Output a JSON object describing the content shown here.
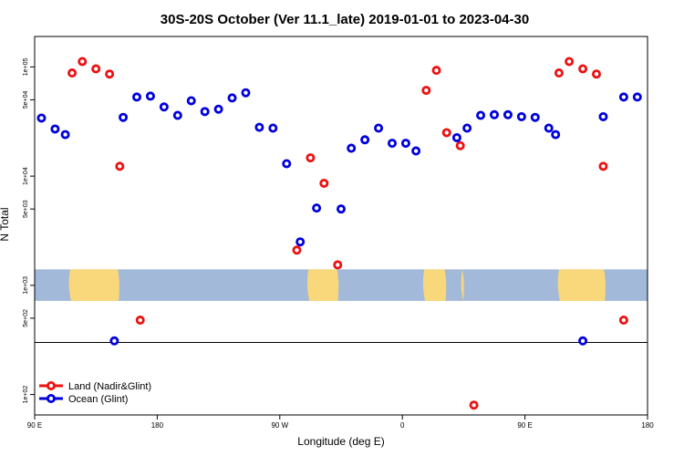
{
  "chart_data": {
    "type": "scatter",
    "title": "30S-20S October (Ver 11.1_late)   2019-01-01 to 2023-04-30",
    "xlabel": "Longitude (deg E)",
    "ylabel": "N Total",
    "y_scale": "log",
    "ylim": [
      65,
      190000
    ],
    "xlim": [
      90,
      540
    ],
    "x_ticks": [
      {
        "value": 90,
        "label": "90 E"
      },
      {
        "value": 180,
        "label": "180"
      },
      {
        "value": 270,
        "label": "90 W"
      },
      {
        "value": 360,
        "label": "0"
      },
      {
        "value": 450,
        "label": "90 E"
      },
      {
        "value": 540,
        "label": "180"
      }
    ],
    "y_ticks": [
      {
        "value": 100,
        "label": "1e+02"
      },
      {
        "value": 500,
        "label": "5e+02"
      },
      {
        "value": 1000,
        "label": "1e+03"
      },
      {
        "value": 5000,
        "label": "5e+03"
      },
      {
        "value": 10000,
        "label": "1e+04"
      },
      {
        "value": 50000,
        "label": "5e+04"
      },
      {
        "value": 100000,
        "label": "1e+05"
      }
    ],
    "reference_line": 300,
    "map_band": {
      "ymin": 720,
      "ymax": 1400,
      "ocean_color": "#a3b9d9",
      "land_color": "#f8d87a"
    },
    "legend": {
      "position": "bottom-left"
    },
    "series": [
      {
        "name": "Land (Nadir&Glint)",
        "color": "#ee1111",
        "points": [
          [
            117.5,
            88000
          ],
          [
            125,
            112000
          ],
          [
            135,
            96000
          ],
          [
            145,
            86000
          ],
          [
            152.5,
            12300
          ],
          [
            167.5,
            480
          ],
          [
            292.5,
            14700
          ],
          [
            302.5,
            8600
          ],
          [
            282.5,
            2100
          ],
          [
            312.5,
            1540
          ],
          [
            377.5,
            61000
          ],
          [
            385,
            93000
          ],
          [
            392.5,
            25000
          ],
          [
            402.5,
            19000
          ],
          [
            412.5,
            80
          ],
          [
            475,
            88000
          ],
          [
            482.5,
            112000
          ],
          [
            492.5,
            96000
          ],
          [
            502.5,
            86000
          ],
          [
            507.5,
            12300
          ],
          [
            522.5,
            480
          ]
        ]
      },
      {
        "name": "Ocean (Glint)",
        "color": "#0000dd",
        "points": [
          [
            95,
            34000
          ],
          [
            105,
            27000
          ],
          [
            112.5,
            24000
          ],
          [
            148.5,
            310
          ],
          [
            155,
            34500
          ],
          [
            165,
            53000
          ],
          [
            175,
            54000
          ],
          [
            185,
            43000
          ],
          [
            195,
            36000
          ],
          [
            205,
            49000
          ],
          [
            215,
            39000
          ],
          [
            225,
            41000
          ],
          [
            235,
            52000
          ],
          [
            245,
            58000
          ],
          [
            255,
            28000
          ],
          [
            265,
            27500
          ],
          [
            275,
            13000
          ],
          [
            285,
            2500
          ],
          [
            297,
            5100
          ],
          [
            315,
            5000
          ],
          [
            322.5,
            18000
          ],
          [
            332.5,
            21500
          ],
          [
            342.5,
            27500
          ],
          [
            352.5,
            20000
          ],
          [
            362.5,
            20000
          ],
          [
            370,
            17000
          ],
          [
            400,
            22500
          ],
          [
            407.5,
            27500
          ],
          [
            417.5,
            36000
          ],
          [
            427.5,
            36500
          ],
          [
            437.5,
            36500
          ],
          [
            447.5,
            35000
          ],
          [
            457.5,
            34500
          ],
          [
            467.5,
            27500
          ],
          [
            472.5,
            24000
          ],
          [
            492.5,
            310
          ],
          [
            507.5,
            35000
          ],
          [
            522.5,
            53000
          ],
          [
            532.5,
            53000
          ]
        ]
      }
    ]
  }
}
